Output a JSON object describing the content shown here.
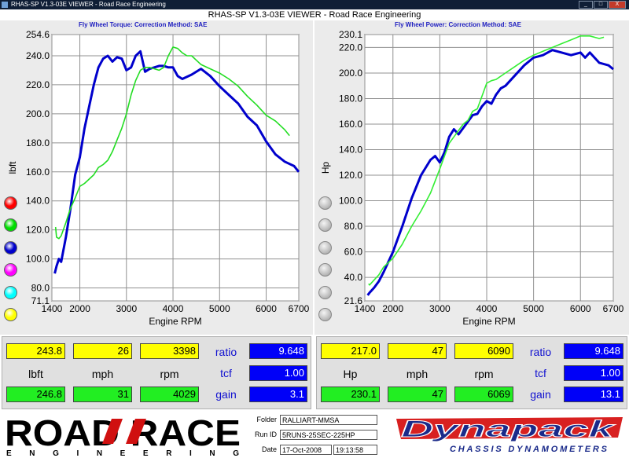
{
  "window": {
    "title": "RHAS-SP V1.3-03E VIEWER - Road Race Engineering",
    "minimize": "_",
    "maximize": "□",
    "close": "X"
  },
  "app_title": "RHAS-SP V1.3-03E VIEWER - Road Race Engineering",
  "left_panel": {
    "header": "Fly Wheel Torque:      Correction Method: SAE",
    "color_selectors": [
      "#ff0000",
      "#00dd00",
      "#0000cc",
      "#ff00ff",
      "#00ffff",
      "#ffff00"
    ]
  },
  "right_panel": {
    "header": "Fly Wheel Power:      Correction Method: SAE"
  },
  "chart_data": [
    {
      "type": "line",
      "xlabel": "Engine RPM",
      "ylabel": "lbft",
      "xlim": [
        1400,
        6700
      ],
      "ylim": [
        71.1,
        254.6
      ],
      "x_ticks": [
        "1400",
        "2000",
        "3000",
        "4000",
        "5000",
        "6000",
        "6700"
      ],
      "y_ticks": [
        "254.6",
        "240.0",
        "220.0",
        "200.0",
        "180.0",
        "160.0",
        "140.0",
        "120.0",
        "100.0",
        "80.0",
        "71.1"
      ],
      "grid": true,
      "series": [
        {
          "color": "#0000cc",
          "x": [
            1460,
            1500,
            1550,
            1600,
            1700,
            1800,
            1900,
            2000,
            2100,
            2200,
            2300,
            2400,
            2500,
            2600,
            2700,
            2800,
            2900,
            3000,
            3100,
            3200,
            3300,
            3400,
            3500,
            3600,
            3700,
            3800,
            3900,
            4000,
            4100,
            4200,
            4400,
            4600,
            4800,
            5000,
            5200,
            5400,
            5600,
            5800,
            6000,
            6200,
            6400,
            6600,
            6700
          ],
          "y": [
            90,
            95,
            100,
            98,
            115,
            135,
            158,
            170,
            190,
            205,
            220,
            232,
            238,
            240,
            236,
            239,
            238,
            230,
            232,
            240,
            243,
            229,
            231,
            232,
            233,
            233,
            232,
            232,
            226,
            224,
            227,
            231,
            226,
            219,
            213,
            207,
            198,
            192,
            181,
            172,
            167,
            164,
            160
          ]
        },
        {
          "color": "#22dd22",
          "x": [
            1480,
            1500,
            1550,
            1600,
            1700,
            1800,
            1900,
            2000,
            2100,
            2200,
            2300,
            2400,
            2500,
            2600,
            2700,
            2800,
            2900,
            3000,
            3100,
            3200,
            3300,
            3400,
            3500,
            3600,
            3700,
            3800,
            3900,
            4000,
            4100,
            4200,
            4300,
            4400,
            4600,
            4800,
            5000,
            5200,
            5400,
            5600,
            5800,
            6000,
            6200,
            6400,
            6500
          ],
          "y": [
            122,
            115,
            114,
            116,
            125,
            135,
            142,
            150,
            152,
            155,
            158,
            163,
            165,
            168,
            174,
            182,
            190,
            200,
            213,
            223,
            230,
            232,
            232,
            231,
            230,
            232,
            240,
            246,
            245,
            242,
            240,
            240,
            234,
            231,
            228,
            224,
            219,
            212,
            206,
            199,
            195,
            189,
            185
          ]
        }
      ]
    },
    {
      "type": "line",
      "xlabel": "Engine RPM",
      "ylabel": "Hp",
      "xlim": [
        1400,
        6700
      ],
      "ylim": [
        21.6,
        230.1
      ],
      "x_ticks": [
        "1400",
        "2000",
        "3000",
        "4000",
        "5000",
        "6000",
        "6700"
      ],
      "y_ticks": [
        "230.1",
        "220.0",
        "200.0",
        "180.0",
        "160.0",
        "140.0",
        "120.0",
        "100.0",
        "80.0",
        "60.0",
        "40.0",
        "21.6"
      ],
      "grid": true,
      "series": [
        {
          "color": "#0000cc",
          "x": [
            1460,
            1500,
            1600,
            1700,
            1800,
            2000,
            2200,
            2400,
            2600,
            2800,
            2900,
            3000,
            3100,
            3200,
            3300,
            3400,
            3500,
            3600,
            3700,
            3800,
            3900,
            4000,
            4100,
            4200,
            4300,
            4400,
            4600,
            4800,
            5000,
            5200,
            5400,
            5600,
            5800,
            6000,
            6100,
            6200,
            6400,
            6600,
            6700
          ],
          "y": [
            26,
            28,
            32,
            37,
            44,
            60,
            80,
            102,
            120,
            132,
            135,
            130,
            138,
            150,
            156,
            152,
            157,
            162,
            167,
            168,
            174,
            178,
            176,
            183,
            188,
            190,
            198,
            206,
            212,
            214,
            218,
            216,
            214,
            216,
            212,
            216,
            208,
            206,
            203
          ]
        },
        {
          "color": "#33ee33",
          "x": [
            1480,
            1500,
            1600,
            1700,
            1800,
            2000,
            2200,
            2400,
            2600,
            2800,
            3000,
            3200,
            3300,
            3400,
            3500,
            3600,
            3700,
            3800,
            3900,
            4000,
            4100,
            4200,
            4400,
            4600,
            4800,
            5000,
            5200,
            5400,
            5600,
            5800,
            6000,
            6200,
            6400,
            6500
          ],
          "y": [
            35,
            34,
            38,
            42,
            48,
            55,
            66,
            80,
            92,
            106,
            125,
            145,
            150,
            155,
            160,
            163,
            170,
            172,
            182,
            192,
            194,
            195,
            200,
            205,
            210,
            214,
            217,
            220,
            223,
            226,
            229,
            229,
            227,
            228
          ]
        }
      ]
    }
  ],
  "readouts_left": {
    "row1": [
      "243.8",
      "26",
      "3398"
    ],
    "labels": [
      "lbft",
      "mph",
      "rpm"
    ],
    "row3": [
      "246.8",
      "31",
      "4029"
    ],
    "ratio_label": "ratio",
    "ratio": "9.648",
    "tcf_label": "tcf",
    "tcf": "1.00",
    "gain_label": "gain",
    "gain": "3.1"
  },
  "readouts_right": {
    "row1": [
      "217.0",
      "47",
      "6090"
    ],
    "labels": [
      "Hp",
      "mph",
      "rpm"
    ],
    "row3": [
      "230.1",
      "47",
      "6069"
    ],
    "ratio_label": "ratio",
    "ratio": "9.648",
    "tcf_label": "tcf",
    "tcf": "1.00",
    "gain_label": "gain",
    "gain": "13.1"
  },
  "footer": {
    "logo_text_main": "ROAD RACE",
    "logo_text_sub": "E N G I N E E R I N G",
    "folder_label": "Folder",
    "folder": "RALLIART-MMSA",
    "runid_label": "Run ID",
    "runid": "5RUNS-25SEC-225HP",
    "date_label": "Date",
    "date": "17-Oct-2008",
    "time": "19:13:58",
    "dynapack": "Dynapack",
    "dynapack_sub": "CHASSIS DYNAMOMETERS"
  }
}
